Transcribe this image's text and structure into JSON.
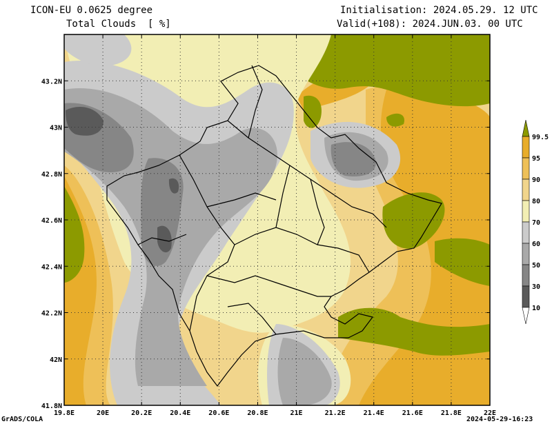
{
  "header": {
    "model": "ICON-EU 0.0625 degree",
    "field": "Total Clouds  [ %]",
    "init": "Initialisation: 2024.05.29. 12 UTC",
    "valid": "Valid(+108): 2024.JUN.03. 00 UTC"
  },
  "footer": {
    "credit": "GrADS/COLA",
    "timestamp": "2024-05-29-16:23"
  },
  "map": {
    "lon_labels": [
      "19.8E",
      "20E",
      "20.2E",
      "20.4E",
      "20.6E",
      "20.8E",
      "21E",
      "21.2E",
      "21.4E",
      "21.6E",
      "21.8E",
      "22E"
    ],
    "lat_labels": [
      "43.2N",
      "43N",
      "42.8N",
      "42.6N",
      "42.4N",
      "42.2N",
      "42N",
      "41.8N"
    ],
    "lon_range": [
      19.8,
      22.0
    ],
    "lat_range": [
      41.8,
      43.4
    ],
    "gridlines": "dotted"
  },
  "colorbar": {
    "labels": [
      "99.5",
      "95",
      "90",
      "80",
      "70",
      "60",
      "50",
      "30",
      "10"
    ],
    "classes": [
      {
        "range": "> 99.5",
        "color": "#8c9a00"
      },
      {
        "range": "95-99.5",
        "color": "#e8ad2b"
      },
      {
        "range": "90-95",
        "color": "#eec058"
      },
      {
        "range": "80-90",
        "color": "#f1d58c"
      },
      {
        "range": "70-80",
        "color": "#f2eeb4"
      },
      {
        "range": "60-70",
        "color": "#cbcbcb"
      },
      {
        "range": "50-60",
        "color": "#a9a9a9"
      },
      {
        "range": "30-50",
        "color": "#868686"
      },
      {
        "range": "10-30",
        "color": "#5a5a5a"
      },
      {
        "range": "< 10",
        "color": "#ffffff"
      }
    ]
  }
}
